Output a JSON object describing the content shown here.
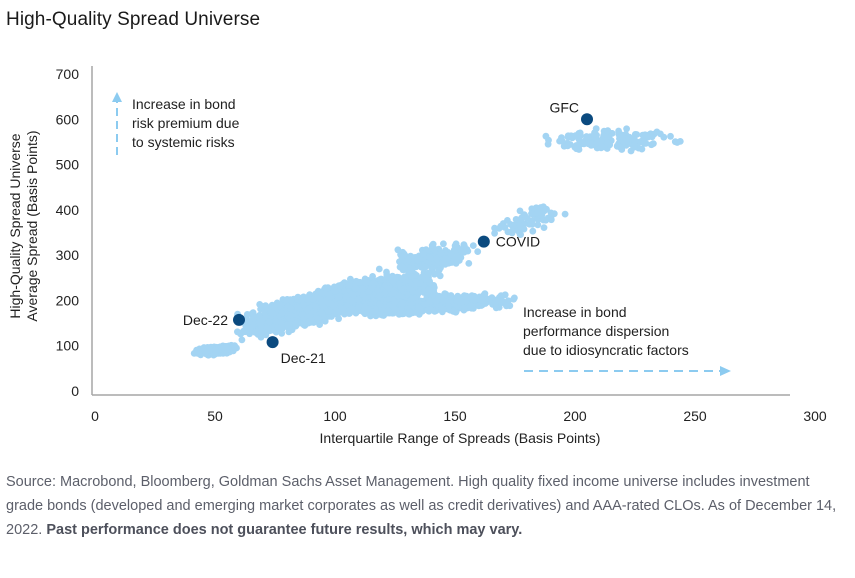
{
  "chart_data": {
    "type": "scatter",
    "title": "High-Quality Spread Universe",
    "xlabel": "Interquartile Range of Spreads (Basis Points)",
    "ylabel": [
      "High-Quality Spread Universe",
      "Average Spread (Basis Points)"
    ],
    "xlim": [
      0,
      300
    ],
    "ylim": [
      0,
      700
    ],
    "xticks": [
      "0",
      "50",
      "100",
      "150",
      "200",
      "250",
      "300"
    ],
    "yticks": [
      "0",
      "100",
      "200",
      "300",
      "400",
      "500",
      "600",
      "700"
    ],
    "grid": false,
    "colors": {
      "points": "#a3d4f3",
      "highlight": "#0b4a7f",
      "arrow": "#8ccbf0",
      "axis": "#a6a6a6"
    },
    "clusters": [
      {
        "x": [
          40,
          60
        ],
        "y": [
          70,
          110
        ],
        "n": 260,
        "slope": 1.2
      },
      {
        "x": [
          55,
          110
        ],
        "y": [
          90,
          250
        ],
        "n": 900,
        "slope": 2.4
      },
      {
        "x": [
          80,
          150
        ],
        "y": [
          130,
          300
        ],
        "n": 1100,
        "slope": 1.8
      },
      {
        "x": [
          100,
          180
        ],
        "y": [
          150,
          230
        ],
        "n": 900,
        "slope": 0.7
      },
      {
        "x": [
          115,
          165
        ],
        "y": [
          230,
          360
        ],
        "n": 160,
        "slope": 1.5
      },
      {
        "x": [
          160,
          200
        ],
        "y": [
          300,
          450
        ],
        "n": 70,
        "slope": 3.2
      },
      {
        "x": [
          180,
          250
        ],
        "y": [
          500,
          610
        ],
        "n": 170,
        "slope": 0
      }
    ],
    "highlighted_points": [
      {
        "label": "GFC",
        "x": 205,
        "y": 600
      },
      {
        "label": "COVID",
        "x": 162,
        "y": 330
      },
      {
        "label": "Dec-22",
        "x": 60,
        "y": 157
      },
      {
        "label": "Dec-21",
        "x": 74,
        "y": 108
      }
    ],
    "annotations": {
      "vertical": [
        "Increase in bond",
        "risk premium due",
        "to systemic risks"
      ],
      "horizontal": [
        "Increase in bond",
        "performance dispersion",
        "due to idiosyncratic factors"
      ]
    }
  },
  "footer": {
    "text": "Source: Macrobond, Bloomberg, Goldman Sachs Asset Management. High quality fixed income universe includes investment grade bonds (developed and emerging market corporates as well as credit derivatives) and AAA-rated CLOs. As of December 14, 2022. ",
    "bold": "Past performance does not guarantee future results, which may vary."
  }
}
